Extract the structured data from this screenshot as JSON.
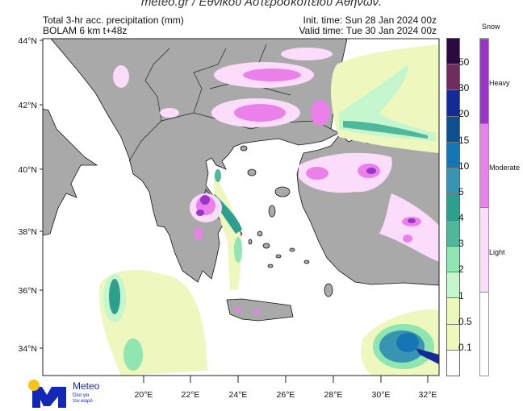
{
  "source": "meteo.gr / Εθνικού Αστεροσκοπείου Αθηνών.",
  "header": {
    "title": "Total 3-hr acc. precipitation (mm)",
    "model": "BOLAM 6 km t+48z",
    "init_time": "Init. time: Sun 28 Jan 2024 00z",
    "valid_time": "Valid time: Tue 30 Jan 2024 00z"
  },
  "map": {
    "lat_labels": [
      "44°N",
      "42°N",
      "40°N",
      "38°N",
      "36°N",
      "34°N"
    ],
    "lon_labels": [
      "20°E",
      "22°E",
      "24°E",
      "26°E",
      "28°E",
      "30°E",
      "32°E"
    ],
    "land_color": "#a9a9a9",
    "sea_color": "#ffffff"
  },
  "precip_legend": {
    "labels": [
      "50",
      "30",
      "20",
      "15",
      "10",
      "5",
      "4",
      "3",
      "2",
      "1",
      "0.5",
      "0.1"
    ],
    "colors": [
      "#2b0a42",
      "#6e2d5c",
      "#142a96",
      "#0d4f8f",
      "#1676b3",
      "#3894b3",
      "#2e9e8e",
      "#4fb89a",
      "#8fe6b0",
      "#c6f6cd",
      "#ecf8ba",
      "#eef7bd",
      "#ffffff"
    ]
  },
  "snow_legend": {
    "title": "Snow",
    "labels": [
      "Heavy",
      "Moderate",
      "Light"
    ],
    "colors": [
      "#9a35cc",
      "#ec80ea",
      "#fcdcfb",
      "#ffffff"
    ]
  },
  "logo": {
    "name": "Meteo",
    "tagline_1": "Όλα για",
    "tagline_2": "τον καιρό",
    "colors": {
      "mark": "#1428b8",
      "sun": "#f5c518"
    }
  }
}
